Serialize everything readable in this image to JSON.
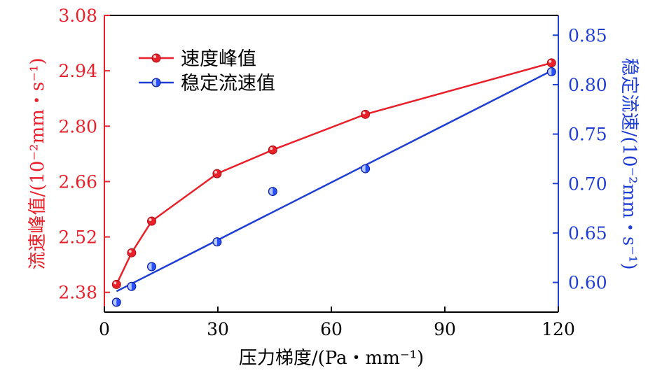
{
  "chart_data": {
    "type": "line",
    "title": "",
    "xlabel": "压力梯度/(Pa・mm⁻¹)",
    "ylabel_left": "流速峰值/(10⁻²mm・s⁻¹)",
    "ylabel_right": "稳定流速/(10⁻²mm・s⁻¹)",
    "xlim": [
      0,
      120
    ],
    "xticks": [
      0,
      30,
      60,
      90,
      120
    ],
    "ylim_left": [
      2.33,
      3.08
    ],
    "yticks_left": [
      2.38,
      2.52,
      2.66,
      2.8,
      2.94,
      3.08
    ],
    "ylim_right": [
      0.57,
      0.87
    ],
    "yticks_right": [
      0.6,
      0.65,
      0.7,
      0.75,
      0.8,
      0.85
    ],
    "legend_position": "top-left",
    "colors": {
      "left_axis": "#e8202a",
      "right_axis": "#1f3fd4",
      "axis_black": "#000000"
    },
    "series": [
      {
        "name": "速度峰值",
        "axis": "left",
        "color": "#e8202a",
        "style": "line+markers",
        "x": [
          3.2,
          7.2,
          12.5,
          29.8,
          44.5,
          69.0,
          118.2
        ],
        "y": [
          2.4,
          2.48,
          2.56,
          2.68,
          2.74,
          2.83,
          2.96
        ]
      },
      {
        "name": "稳定流速值",
        "axis": "right",
        "color": "#1f3fd4",
        "style": "markers+fit",
        "x": [
          3.2,
          7.2,
          12.5,
          29.8,
          44.5,
          69.0,
          118.2
        ],
        "y": [
          0.58,
          0.596,
          0.616,
          0.641,
          0.692,
          0.715,
          0.813
        ],
        "fit_x": [
          3.2,
          118.2
        ],
        "fit_y": [
          0.591,
          0.814
        ]
      }
    ]
  }
}
